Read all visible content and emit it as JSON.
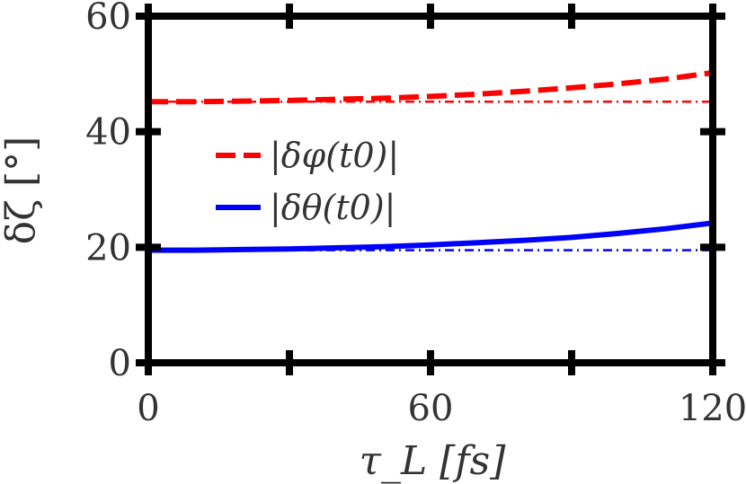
{
  "chart_data": {
    "type": "line",
    "title": "",
    "xlabel": "τ_L [fs]",
    "ylabel": "δζ [°]",
    "xlim": [
      0,
      120
    ],
    "ylim": [
      0,
      60
    ],
    "x_ticks": [
      0,
      60,
      120
    ],
    "x_tick_labels": [
      "0",
      "60",
      "120"
    ],
    "x_minor_ticks": [
      30,
      90
    ],
    "y_ticks": [
      0,
      20,
      40,
      60
    ],
    "y_tick_labels": [
      "0",
      "20",
      "40",
      "60"
    ],
    "grid": false,
    "legend": "center-left",
    "series": [
      {
        "name": "|δφ(t0)|",
        "color": "#ff0000",
        "style": "dashed",
        "x": [
          0,
          10,
          20,
          30,
          40,
          50,
          60,
          70,
          80,
          90,
          100,
          110,
          120
        ],
        "y": [
          45.2,
          45.2,
          45.3,
          45.4,
          45.6,
          45.8,
          46.1,
          46.5,
          47.0,
          47.6,
          48.3,
          49.1,
          50.2
        ]
      },
      {
        "name": "",
        "color": "#ff0000",
        "style": "dashdot",
        "x": [
          0,
          120
        ],
        "y": [
          45.2,
          45.2
        ]
      },
      {
        "name": "|δθ(t0)|",
        "color": "#0000ff",
        "style": "solid",
        "x": [
          0,
          10,
          20,
          30,
          40,
          50,
          60,
          70,
          80,
          90,
          100,
          110,
          120
        ],
        "y": [
          19.5,
          19.5,
          19.6,
          19.7,
          19.9,
          20.1,
          20.4,
          20.8,
          21.2,
          21.7,
          22.4,
          23.2,
          24.2
        ]
      },
      {
        "name": "",
        "color": "#0000ff",
        "style": "dashdot",
        "x": [
          0,
          120
        ],
        "y": [
          19.5,
          19.5
        ]
      }
    ]
  }
}
